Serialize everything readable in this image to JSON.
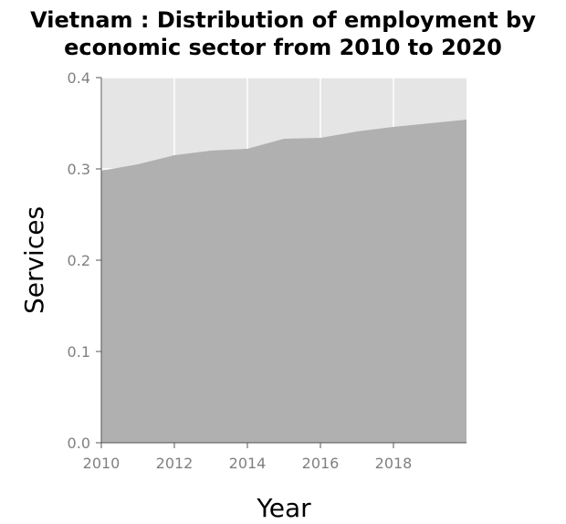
{
  "chart_data": {
    "type": "area",
    "title_lines": [
      "Vietnam : Distribution of employment by",
      "economic sector from 2010 to 2020"
    ],
    "xlabel": "Year",
    "ylabel": "Services",
    "x_ticks": [
      2010,
      2012,
      2014,
      2016,
      2018
    ],
    "y_ticks": [
      "0.0",
      "0.1",
      "0.2",
      "0.3",
      "0.4"
    ],
    "xlim": [
      2010,
      2020
    ],
    "ylim": [
      0,
      0.4
    ],
    "grid": true,
    "x": [
      2010,
      2011,
      2012,
      2013,
      2014,
      2015,
      2016,
      2017,
      2018,
      2019,
      2020
    ],
    "series": [
      {
        "values": [
          0.298,
          0.305,
          0.315,
          0.32,
          0.322,
          0.333,
          0.334,
          0.341,
          0.346,
          0.35,
          0.354
        ]
      }
    ],
    "colors": {
      "area_fill": "#b0b0b0",
      "plot_background": "#e5e5e5",
      "grid": "#ffffff",
      "axis": "#555555",
      "tick_text": "#808080"
    }
  }
}
